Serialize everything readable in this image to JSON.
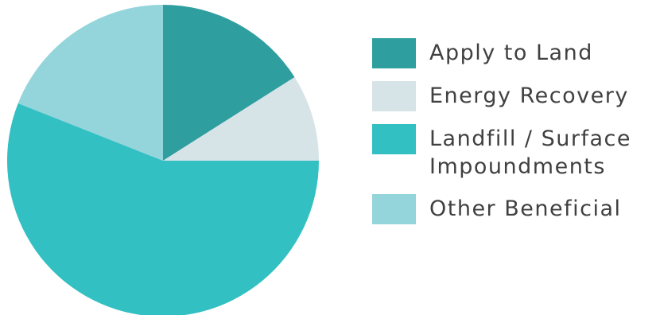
{
  "chart_data": {
    "type": "pie",
    "start_angle_deg": 0,
    "direction": "clockwise",
    "legend_position": "right",
    "slices": [
      {
        "label": "Apply to Land",
        "value": 16,
        "color": "#2E9E9F"
      },
      {
        "label": "Energy Recovery",
        "value": 9,
        "color": "#D6E4E8"
      },
      {
        "label": "Landfill / Surface\nImpoundments",
        "value": 56,
        "color": "#32C0C3"
      },
      {
        "label": "Other Beneficial",
        "value": 19,
        "color": "#93D5DA"
      }
    ]
  }
}
